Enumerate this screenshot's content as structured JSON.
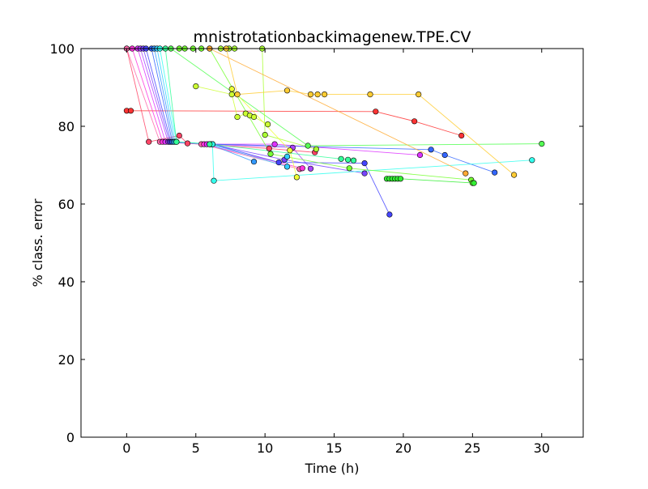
{
  "chart_data": {
    "type": "scatter",
    "title": "mnistrotationbackimagenew.TPE.CV",
    "xlabel": "Time (h)",
    "ylabel": "% class. error",
    "xlim": [
      -3.3,
      33
    ],
    "ylim": [
      0,
      100
    ],
    "xticks": [
      0,
      5,
      10,
      15,
      20,
      25,
      30
    ],
    "yticks": [
      0,
      20,
      40,
      60,
      80,
      100
    ],
    "grid": false,
    "legend": "none",
    "series": [
      {
        "color": "#ff3333",
        "points": [
          [
            0.0,
            84.0
          ],
          [
            0.3,
            84.0
          ],
          [
            18.0,
            83.8
          ],
          [
            20.8,
            81.3
          ],
          [
            24.2,
            77.6
          ]
        ]
      },
      {
        "color": "#ff4466",
        "points": [
          [
            0.0,
            100
          ],
          [
            1.6,
            76.0
          ],
          [
            3.8,
            77.6
          ],
          [
            4.4,
            75.6
          ],
          [
            10.3,
            74.3
          ],
          [
            13.6,
            73.3
          ]
        ]
      },
      {
        "color": "#ff66aa",
        "points": [
          [
            0.0,
            100
          ],
          [
            2.4,
            76.0
          ],
          [
            5.4,
            75.4
          ],
          [
            12.5,
            69.0
          ]
        ]
      },
      {
        "color": "#ff33dd",
        "points": [
          [
            0.4,
            100
          ],
          [
            2.6,
            76.0
          ],
          [
            5.6,
            75.4
          ],
          [
            12.7,
            69.2
          ]
        ]
      },
      {
        "color": "#dd33ff",
        "points": [
          [
            0.8,
            100
          ],
          [
            2.8,
            76.0
          ],
          [
            5.8,
            75.4
          ],
          [
            10.7,
            75.4
          ],
          [
            21.2,
            72.6
          ]
        ]
      },
      {
        "color": "#aa44ff",
        "points": [
          [
            1.0,
            100
          ],
          [
            3.0,
            76.0
          ],
          [
            6.0,
            75.4
          ],
          [
            12.0,
            74.5
          ],
          [
            13.3,
            69.1
          ]
        ]
      },
      {
        "color": "#7744ff",
        "points": [
          [
            1.2,
            100
          ],
          [
            3.1,
            76.0
          ],
          [
            6.1,
            75.4
          ],
          [
            11.4,
            71.4
          ],
          [
            17.2,
            67.9
          ]
        ]
      },
      {
        "color": "#4444ff",
        "points": [
          [
            1.4,
            100
          ],
          [
            3.2,
            76.0
          ],
          [
            6.2,
            75.4
          ],
          [
            11.0,
            70.7
          ],
          [
            17.2,
            70.5
          ],
          [
            19.0,
            57.3
          ]
        ]
      },
      {
        "color": "#3366ff",
        "points": [
          [
            1.8,
            100
          ],
          [
            3.3,
            76.0
          ],
          [
            6.2,
            75.4
          ],
          [
            22.0,
            74.0
          ],
          [
            23.0,
            72.6
          ],
          [
            26.6,
            68.1
          ]
        ]
      },
      {
        "color": "#3399ff",
        "points": [
          [
            2.0,
            100
          ],
          [
            3.4,
            76.0
          ],
          [
            6.0,
            75.4
          ],
          [
            9.2,
            70.9
          ]
        ]
      },
      {
        "color": "#33ccff",
        "points": [
          [
            2.2,
            100
          ],
          [
            3.5,
            76.0
          ],
          [
            6.1,
            75.4
          ],
          [
            11.6,
            69.6
          ],
          [
            11.6,
            72.2
          ]
        ]
      },
      {
        "color": "#33ffee",
        "points": [
          [
            2.4,
            100
          ],
          [
            3.6,
            76.0
          ],
          [
            6.2,
            75.4
          ],
          [
            6.3,
            66.0
          ],
          [
            29.3,
            71.3
          ]
        ]
      },
      {
        "color": "#33ff99",
        "points": [
          [
            2.8,
            100
          ],
          [
            3.6,
            76.0
          ],
          [
            6.0,
            75.4
          ],
          [
            15.5,
            71.6
          ],
          [
            16.0,
            71.4
          ],
          [
            16.4,
            71.2
          ]
        ]
      },
      {
        "color": "#55ff55",
        "points": [
          [
            3.2,
            100
          ],
          [
            13.1,
            75.0
          ],
          [
            30.0,
            75.5
          ]
        ]
      },
      {
        "color": "#77ff33",
        "points": [
          [
            3.8,
            100
          ],
          [
            4.2,
            100
          ],
          [
            4.8,
            100
          ],
          [
            5.4,
            100
          ],
          [
            6.0,
            100
          ],
          [
            10.4,
            72.9
          ],
          [
            16.1,
            69.2
          ],
          [
            24.9,
            66.2
          ],
          [
            25.0,
            65.4
          ]
        ]
      },
      {
        "color": "#33ee33",
        "points": [
          [
            18.8,
            66.5
          ],
          [
            19.0,
            66.5
          ],
          [
            19.2,
            66.5
          ],
          [
            19.4,
            66.5
          ],
          [
            19.6,
            66.5
          ],
          [
            19.8,
            66.5
          ],
          [
            25.1,
            65.4
          ]
        ]
      },
      {
        "color": "#aaff33",
        "points": [
          [
            6.8,
            100
          ],
          [
            7.4,
            100
          ],
          [
            7.8,
            100
          ],
          [
            9.8,
            100
          ],
          [
            10.0,
            77.8
          ],
          [
            13.7,
            74.1
          ]
        ]
      },
      {
        "color": "#ccff33",
        "points": [
          [
            5.0,
            90.3
          ],
          [
            7.6,
            88.2
          ],
          [
            8.0,
            82.4
          ],
          [
            8.6,
            83.3
          ],
          [
            8.9,
            82.8
          ],
          [
            9.2,
            82.4
          ],
          [
            10.2,
            80.5
          ]
        ]
      },
      {
        "color": "#eeff33",
        "points": [
          [
            7.6,
            89.6
          ],
          [
            11.8,
            73.8
          ],
          [
            12.3,
            66.9
          ]
        ]
      },
      {
        "color": "#ffcc33",
        "points": [
          [
            7.2,
            100
          ],
          [
            8.0,
            88.2
          ],
          [
            11.6,
            89.2
          ],
          [
            13.3,
            88.2
          ],
          [
            13.8,
            88.2
          ],
          [
            14.3,
            88.2
          ],
          [
            17.6,
            88.2
          ],
          [
            21.1,
            88.2
          ],
          [
            28.0,
            67.5
          ]
        ]
      },
      {
        "color": "#ffaa33",
        "points": [
          [
            6.0,
            100
          ],
          [
            24.5,
            67.9
          ]
        ]
      }
    ]
  }
}
